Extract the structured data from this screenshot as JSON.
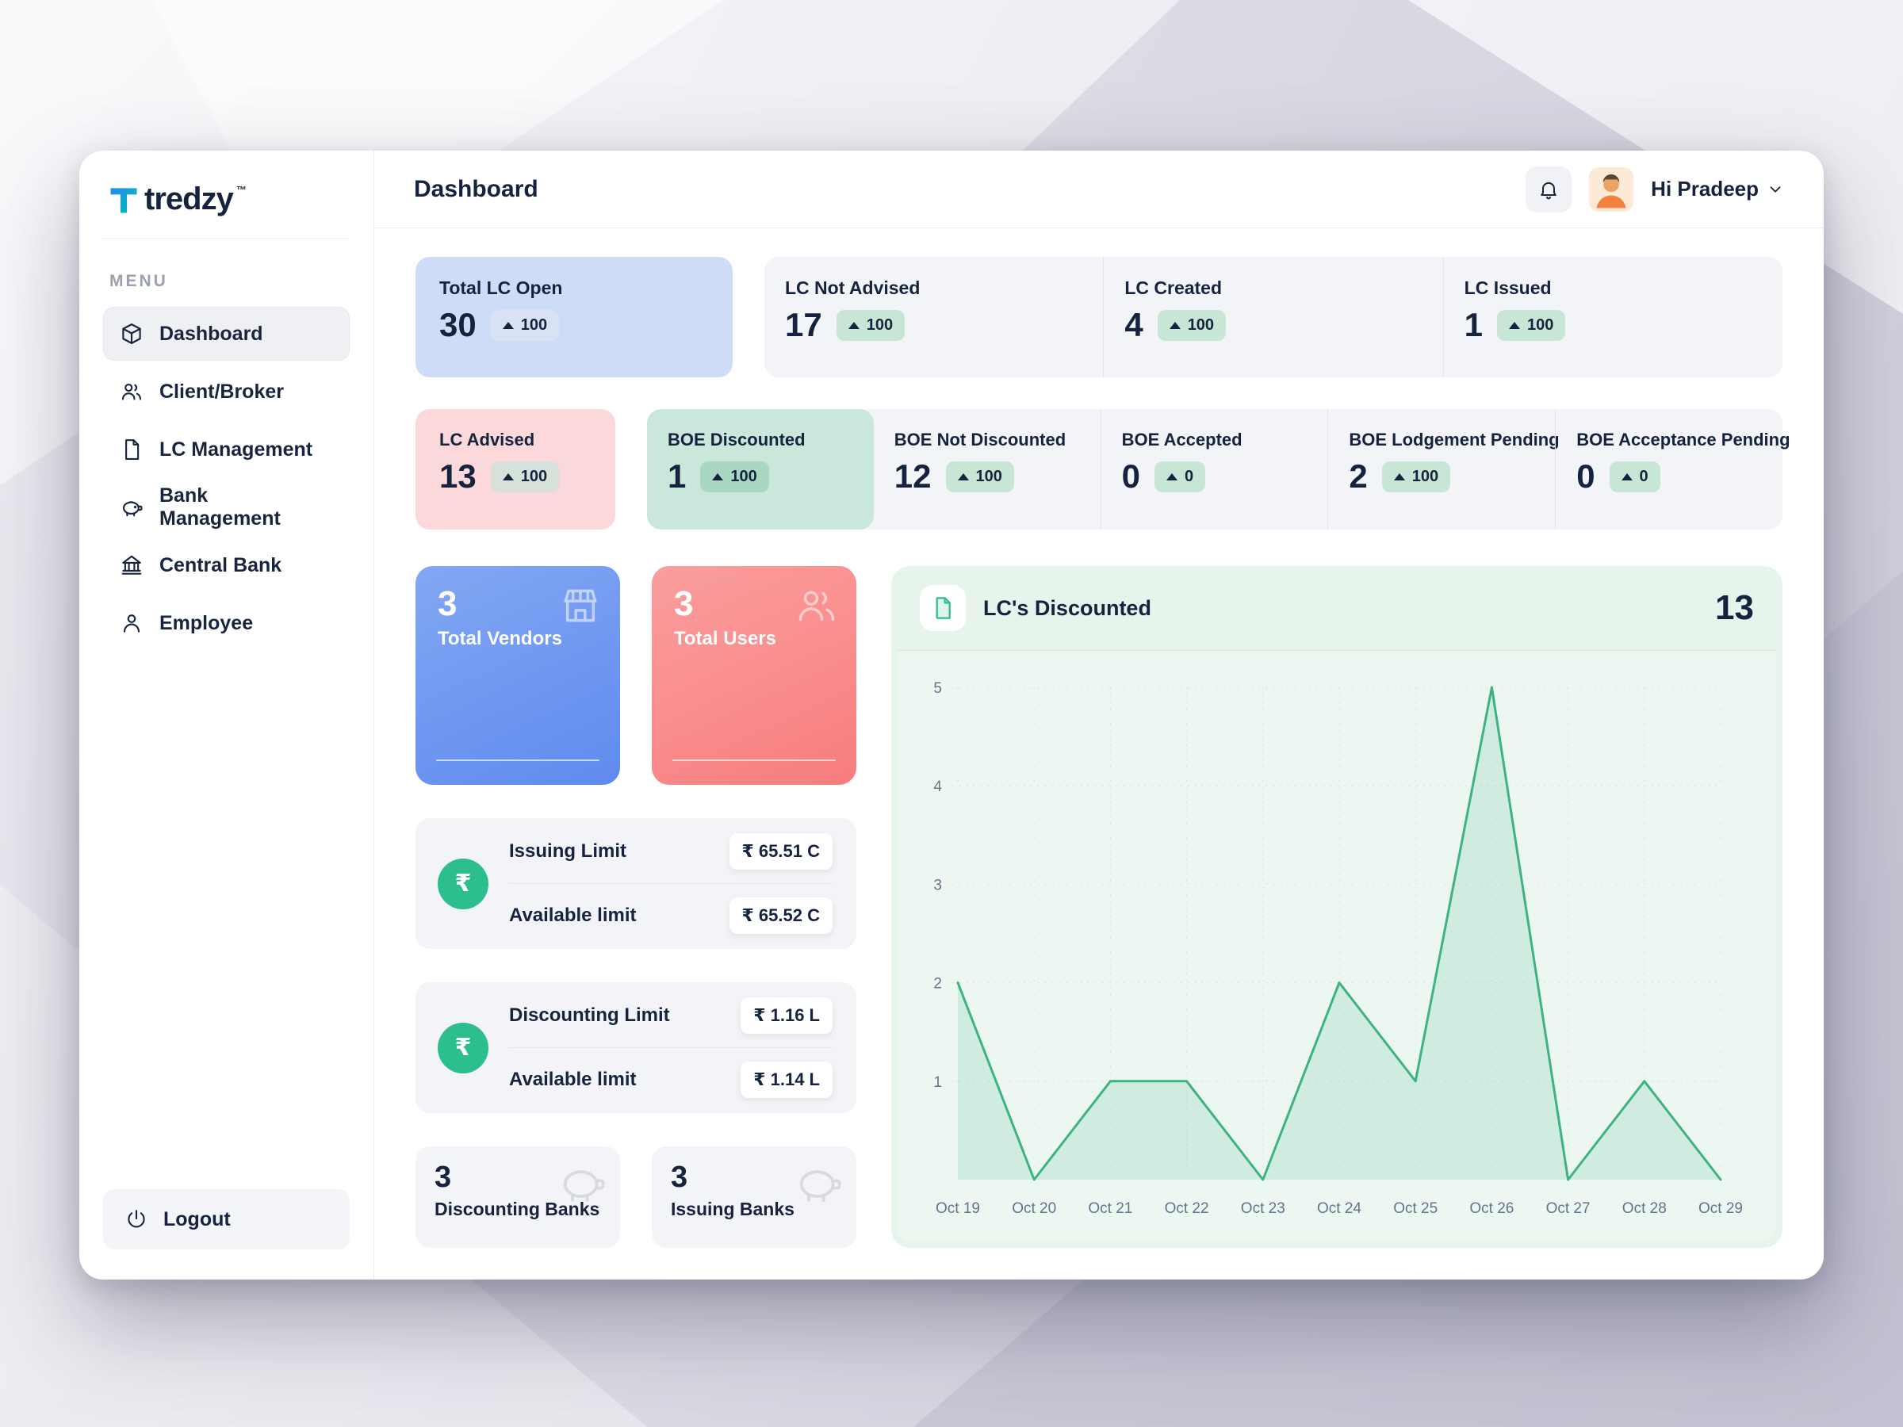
{
  "app": {
    "brand": "tredzy",
    "tm": "™"
  },
  "header": {
    "title": "Dashboard",
    "user": "Hi Pradeep"
  },
  "sidebar": {
    "menu_label": "MENU",
    "items": [
      {
        "label": "Dashboard"
      },
      {
        "label": "Client/Broker"
      },
      {
        "label": "LC Management"
      },
      {
        "label": "Bank Management"
      },
      {
        "label": "Central Bank"
      },
      {
        "label": "Employee"
      }
    ],
    "logout": "Logout"
  },
  "stats_row1": {
    "primary": {
      "label": "Total LC Open",
      "value": "30",
      "badge": "100"
    },
    "group": [
      {
        "label": "LC Not Advised",
        "value": "17",
        "badge": "100"
      },
      {
        "label": "LC Created",
        "value": "4",
        "badge": "100"
      },
      {
        "label": "LC Issued",
        "value": "1",
        "badge": "100"
      }
    ]
  },
  "stats_row2": {
    "primary": {
      "label": "LC Advised",
      "value": "13",
      "badge": "100"
    },
    "group": [
      {
        "label": "BOE Discounted",
        "value": "1",
        "badge": "100"
      },
      {
        "label": "BOE Not Discounted",
        "value": "12",
        "badge": "100"
      },
      {
        "label": "BOE Accepted",
        "value": "0",
        "badge": "0"
      },
      {
        "label": "BOE Lodgement Pending",
        "value": "2",
        "badge": "100"
      },
      {
        "label": "BOE Acceptance Pending",
        "value": "0",
        "badge": "0"
      }
    ]
  },
  "summary": {
    "vendors": {
      "value": "3",
      "label": "Total Vendors"
    },
    "users": {
      "value": "3",
      "label": "Total Users"
    }
  },
  "limits": {
    "issuing": {
      "label": "Issuing Limit",
      "value": "₹ 65.51 C",
      "available_label": "Available limit",
      "available_value": "₹ 65.52 C"
    },
    "discounting": {
      "label": "Discounting Limit",
      "value": "₹ 1.16 L",
      "available_label": "Available limit",
      "available_value": "₹ 1.14 L"
    }
  },
  "banks": {
    "discounting": {
      "value": "3",
      "label": "Discounting Banks"
    },
    "issuing": {
      "value": "3",
      "label": "Issuing Banks"
    }
  },
  "chart_card": {
    "title": "LC's Discounted",
    "total": "13"
  },
  "chart_data": {
    "type": "line",
    "title": "LC's Discounted",
    "x": [
      "Oct 19",
      "Oct 20",
      "Oct 21",
      "Oct 22",
      "Oct 23",
      "Oct 24",
      "Oct 25",
      "Oct 26",
      "Oct 27",
      "Oct 28",
      "Oct 29"
    ],
    "values": [
      2,
      0,
      1,
      1,
      0,
      2,
      1,
      5,
      0,
      1,
      0
    ],
    "ylim": [
      0,
      5
    ],
    "yticks": [
      1,
      2,
      3,
      4,
      5
    ],
    "xlabel": "",
    "ylabel": "",
    "grid": true,
    "legend": false,
    "line_color": "#3eb287",
    "fill_color": "rgba(62,178,135,0.16)"
  },
  "icons": {
    "rupee": "₹"
  },
  "colors": {
    "accent_blue": "#cdddf7",
    "accent_pink": "#fbd8d9",
    "accent_teal": "#c9e7da",
    "badge_green": "#c8e6d5",
    "card_gray": "#f3f4f7",
    "mint": "#e6f4ec",
    "vendor_blue": "#6e95ef",
    "users_red": "#f98b8b",
    "line_green": "#3eb287",
    "text_dark": "#15233f"
  }
}
